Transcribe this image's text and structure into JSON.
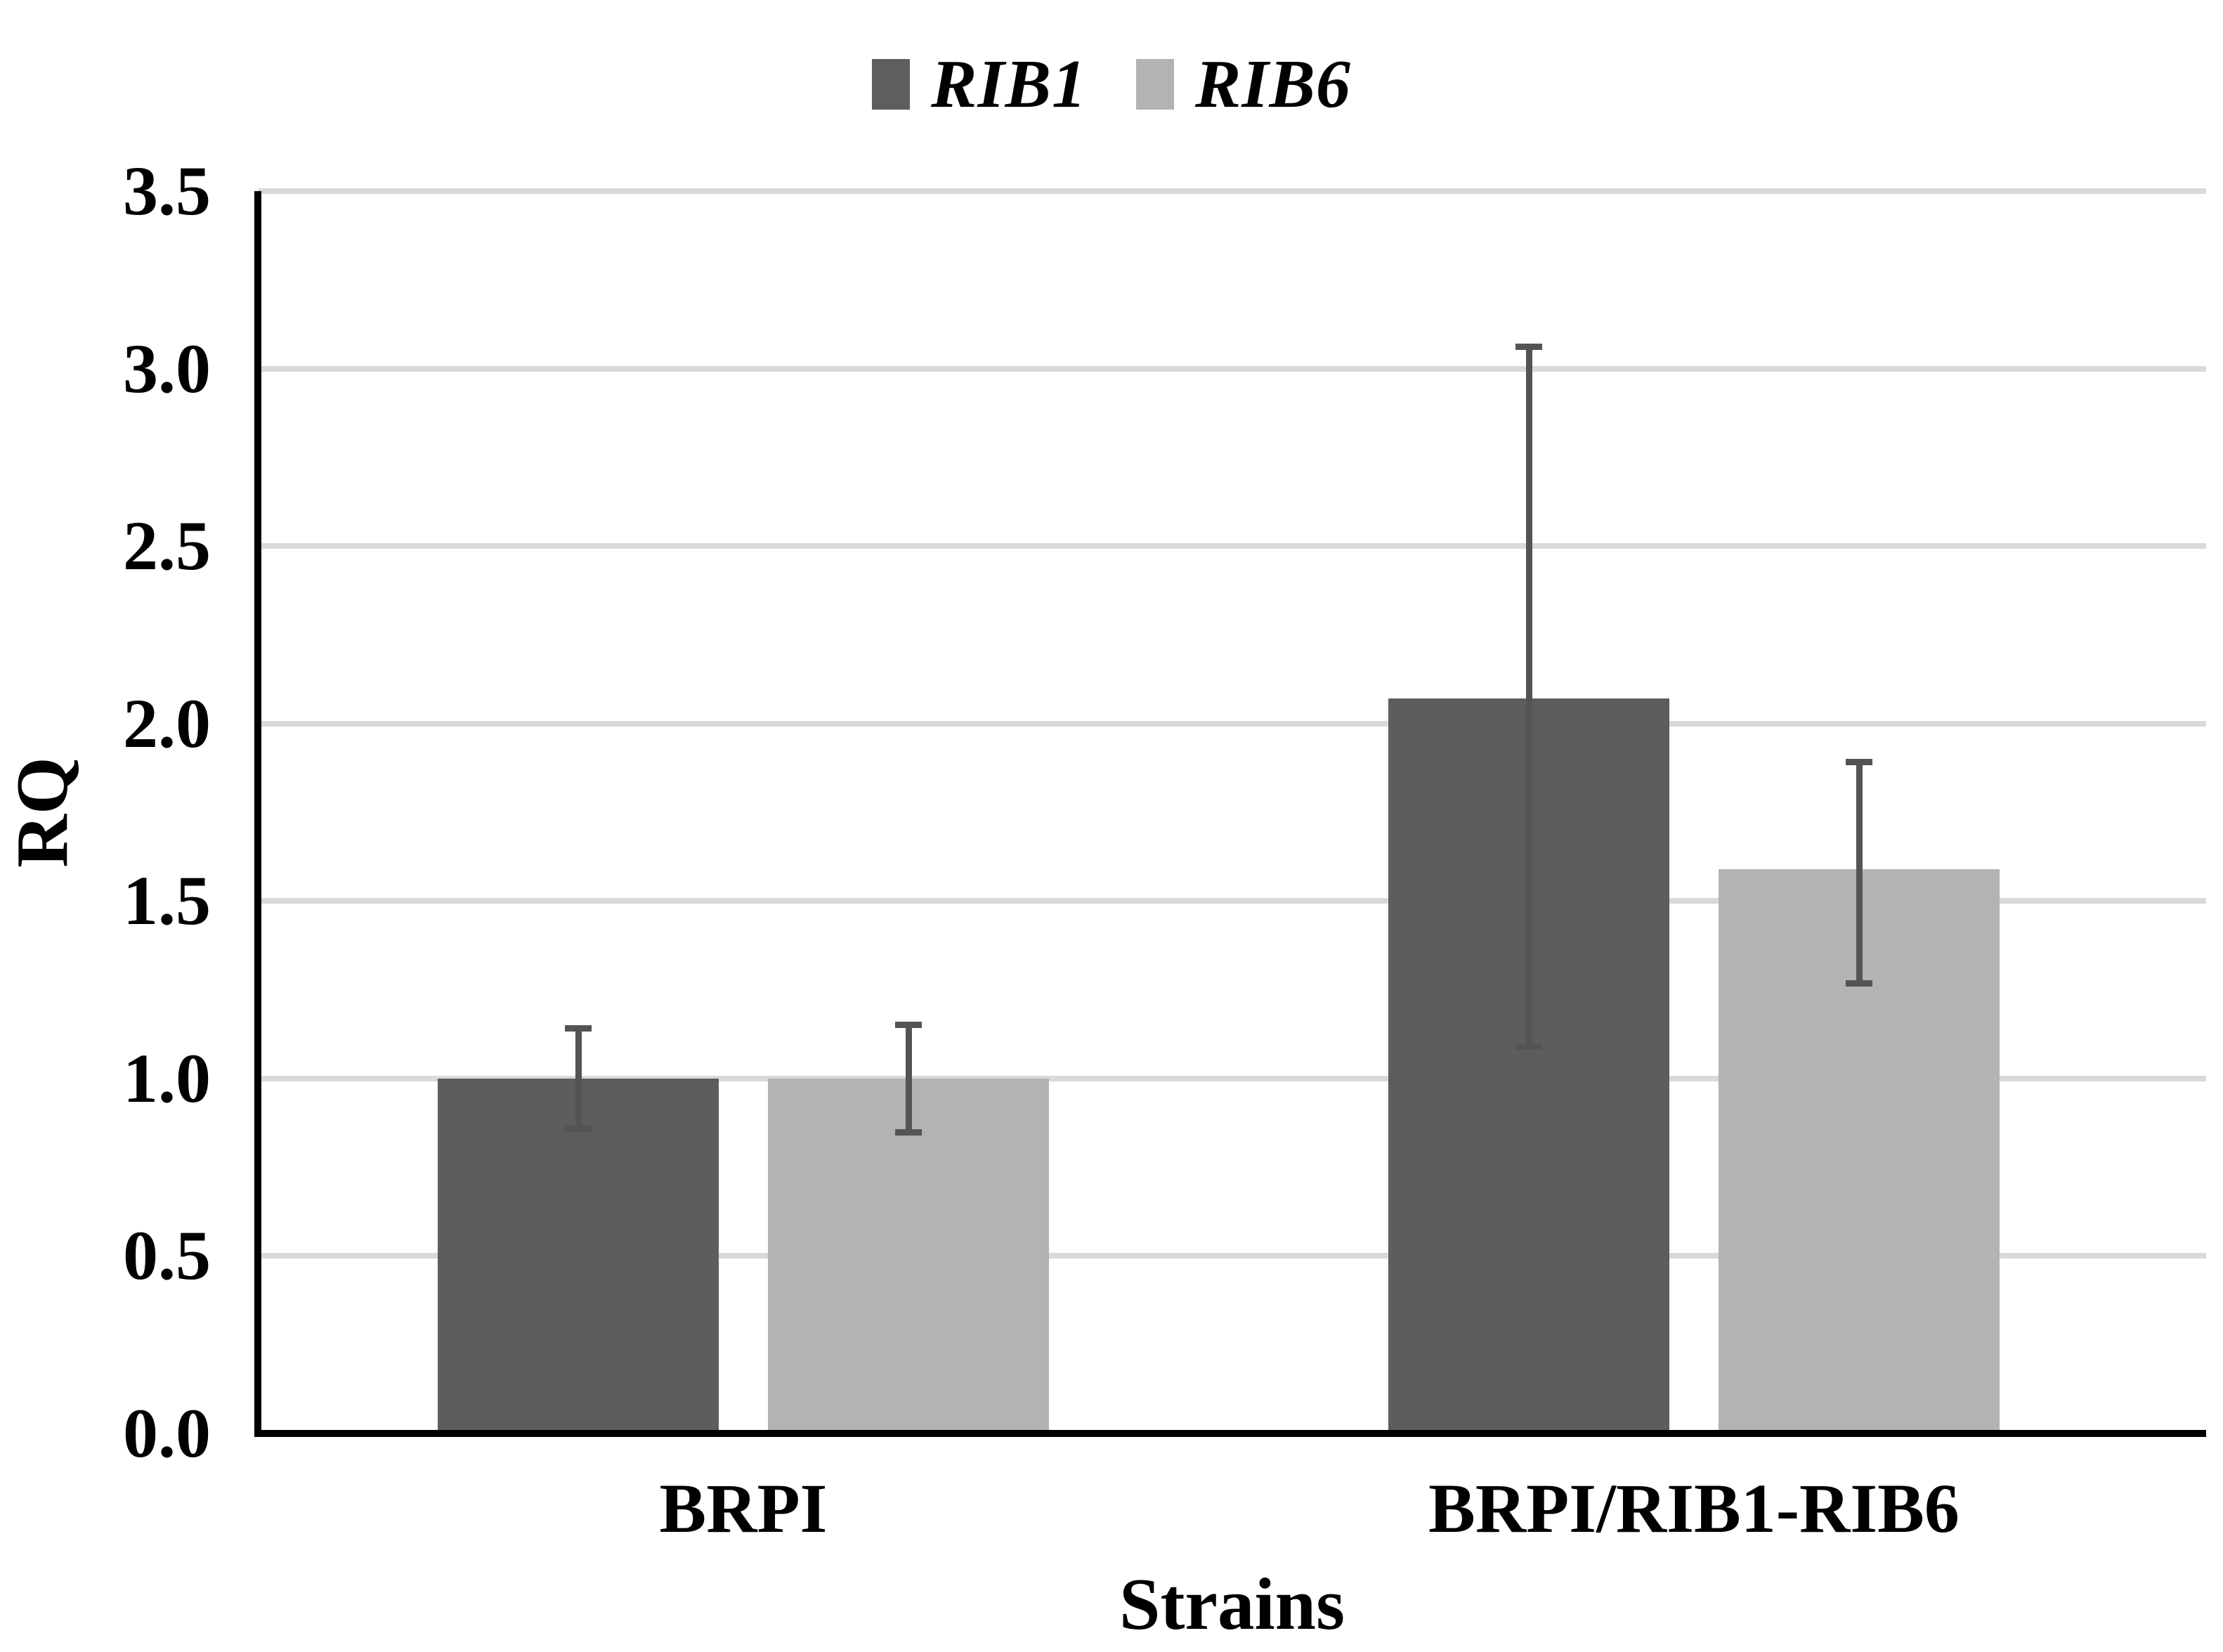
{
  "figure": {
    "y_axis_title": "RQ",
    "x_axis_title": "Strains"
  },
  "legend": {
    "position": "top-center",
    "items": [
      {
        "label": "RIB1",
        "color": "#5e5e5e"
      },
      {
        "label": "RIB6",
        "color": "#b3b3b3"
      }
    ]
  },
  "chart_data": {
    "type": "bar",
    "title": "",
    "xlabel": "Strains",
    "ylabel": "RQ",
    "categories": [
      "BRPI",
      "BRPI/RIB1-RIB6"
    ],
    "series": [
      {
        "name": "RIB1",
        "color": "#5d5d5d",
        "values": [
          1.0,
          2.07
        ],
        "error_plus": [
          0.15,
          1.0
        ],
        "error_minus": [
          0.15,
          0.99
        ]
      },
      {
        "name": "RIB6",
        "color": "#b3b3b3",
        "values": [
          1.0,
          1.59
        ],
        "error_plus": [
          0.16,
          0.31
        ],
        "error_minus": [
          0.16,
          0.33
        ]
      }
    ],
    "ylim": [
      0,
      3.5
    ],
    "ytick_step": 0.5,
    "ytick_labels": [
      "0.0",
      "0.5",
      "1.0",
      "1.5",
      "2.0",
      "2.5",
      "3.0",
      "3.5"
    ],
    "grid": true,
    "legend_position": "top",
    "error_bar_color": "#545454",
    "gridline_color": "#d9d9d9",
    "axis_color": "#000000",
    "background_color": "#ffffff"
  }
}
